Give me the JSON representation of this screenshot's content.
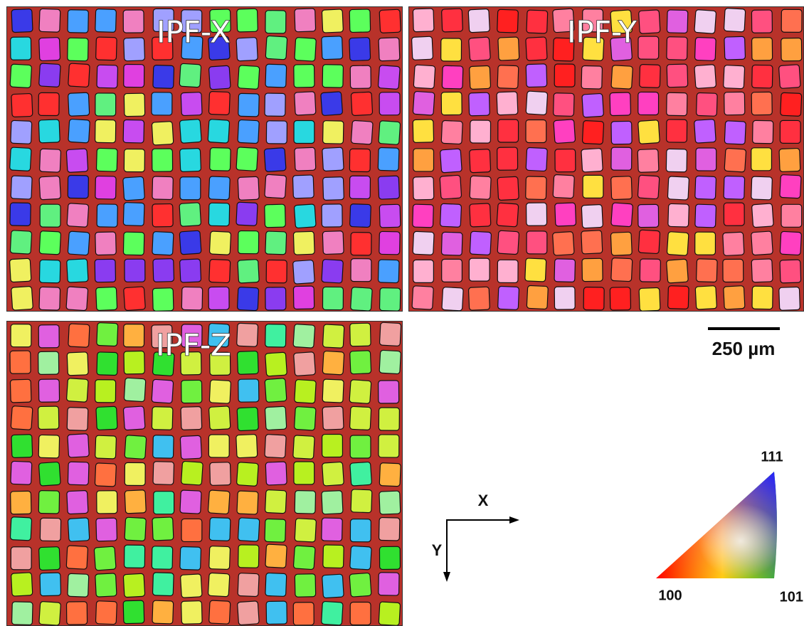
{
  "panels": [
    {
      "label": "IPF-X"
    },
    {
      "label": "IPF-Y"
    },
    {
      "label": "IPF-Z"
    }
  ],
  "scale_bar": {
    "label": "250 µm"
  },
  "axes": {
    "x": "X",
    "y": "Y"
  },
  "legend": {
    "top": "111",
    "left": "100",
    "right": "101"
  }
}
